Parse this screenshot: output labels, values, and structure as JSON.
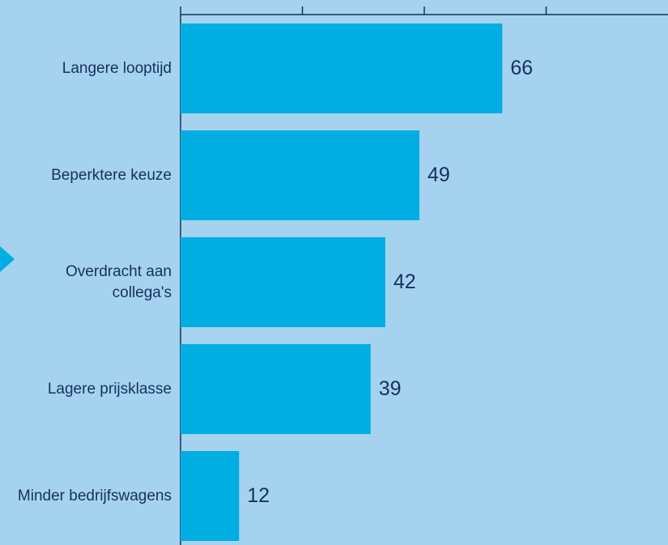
{
  "chart_data": {
    "type": "bar",
    "orientation": "horizontal",
    "categories": [
      "Langere looptijd",
      "Beperktere keuze",
      "Overdracht aan collega's",
      "Lagere prijsklasse",
      "Minder bedrijfswagens"
    ],
    "values": [
      66,
      49,
      42,
      39,
      12
    ],
    "color": "#00aee2",
    "xlim": [
      0,
      100
    ],
    "xticks": [
      0,
      25,
      50,
      75
    ]
  }
}
